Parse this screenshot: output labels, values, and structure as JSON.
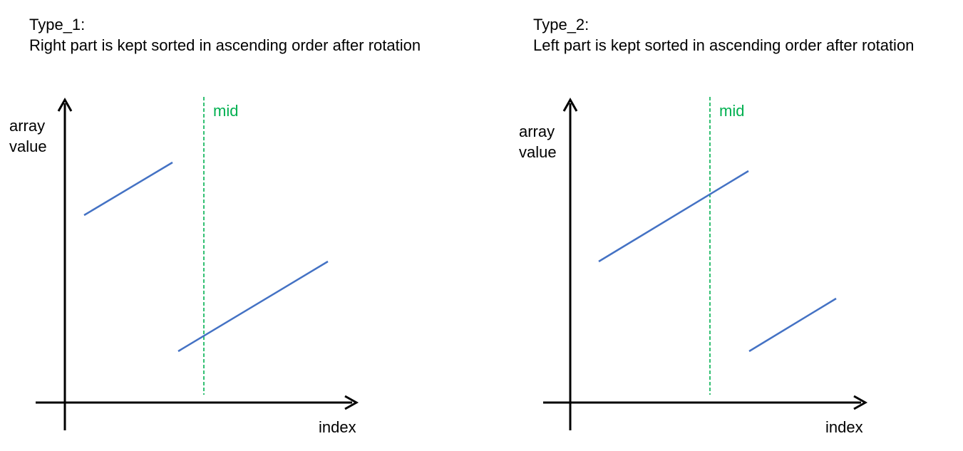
{
  "colors": {
    "axis": "#000000",
    "segment": "#4472C4",
    "mid": "#00B050",
    "text": "#000000"
  },
  "panels": [
    {
      "heading": "Type_1:",
      "description": "Right part is kept sorted in ascending order after rotation",
      "y_axis_label": [
        "array",
        "value"
      ],
      "x_axis_label": "index",
      "mid_label": "mid"
    },
    {
      "heading": "Type_2:",
      "description": "Left part is kept sorted in ascending order after rotation",
      "y_axis_label": [
        "array",
        "value"
      ],
      "x_axis_label": "index",
      "mid_label": "mid"
    }
  ]
}
